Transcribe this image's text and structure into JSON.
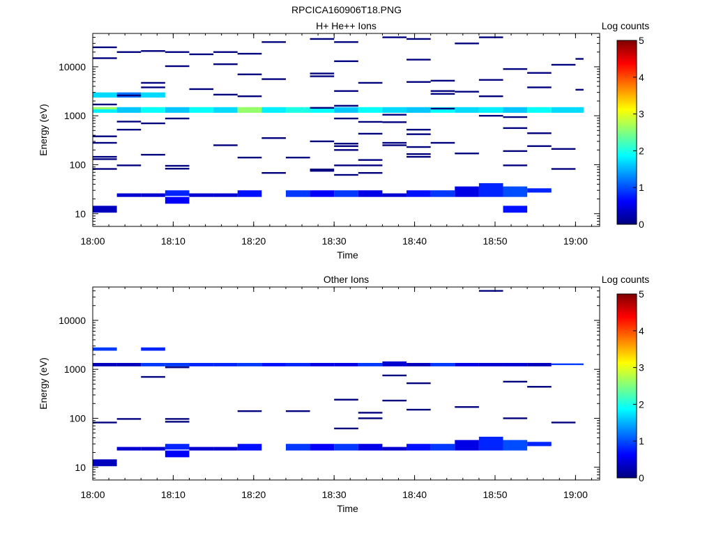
{
  "figure_title": "RPCICA160906T18.PNG",
  "chart_data": [
    {
      "type": "heatmap",
      "title": "H+ He++ Ions",
      "xlabel": "Time",
      "ylabel": "Energy (eV)",
      "y_scale": "log",
      "xlim": [
        "18:00",
        "19:03"
      ],
      "ylim": [
        5.5,
        48000
      ],
      "x_ticks": [
        "18:00",
        "18:10",
        "18:20",
        "18:30",
        "18:40",
        "18:50",
        "19:00"
      ],
      "y_ticks": [
        "10",
        "100",
        "1000",
        "10000"
      ],
      "colorbar": {
        "label": "Log counts",
        "range": [
          0,
          5
        ],
        "ticks": [
          "0",
          "1",
          "2",
          "3",
          "4",
          "5"
        ]
      },
      "bins": [
        [
          "18:00",
          "18:03",
          10.5,
          14.5,
          0.3
        ],
        [
          "18:03",
          "18:06",
          22,
          26,
          0.4
        ],
        [
          "18:06",
          "18:09",
          22,
          26,
          0.4
        ],
        [
          "18:09",
          "18:12",
          23,
          30,
          0.8
        ],
        [
          "18:12",
          "18:15",
          22,
          26,
          0.4
        ],
        [
          "18:15",
          "18:18",
          22,
          26,
          0.4
        ],
        [
          "18:18",
          "18:21",
          22,
          30,
          0.7
        ],
        [
          "18:24",
          "18:27",
          22,
          30,
          0.9
        ],
        [
          "18:27",
          "18:30",
          22,
          30,
          0.6
        ],
        [
          "18:30",
          "18:33",
          22,
          30,
          0.9
        ],
        [
          "18:33",
          "18:36",
          22,
          30,
          0.5
        ],
        [
          "18:36",
          "18:39",
          22,
          26,
          0.4
        ],
        [
          "18:39",
          "18:42",
          22,
          30,
          0.7
        ],
        [
          "18:42",
          "18:45",
          22,
          30,
          0.9
        ],
        [
          "18:45",
          "18:48",
          22,
          36,
          0.5
        ],
        [
          "18:48",
          "18:51",
          22,
          42,
          0.8
        ],
        [
          "18:51",
          "18:54",
          22,
          36,
          1.0
        ],
        [
          "18:54",
          "18:57",
          27,
          33,
          0.8
        ],
        [
          "18:51",
          "18:54",
          10.5,
          14.5,
          0.7
        ],
        [
          "18:09",
          "18:12",
          16,
          22,
          0.6
        ],
        [
          "18:00",
          "18:03",
          2350,
          3000,
          1.7
        ],
        [
          "18:00",
          "18:03",
          1350,
          1500,
          2.6
        ],
        [
          "18:00",
          "18:03",
          1150,
          1350,
          1.8
        ],
        [
          "18:03",
          "18:06",
          2350,
          3000,
          1.2
        ],
        [
          "18:03",
          "18:06",
          1150,
          1500,
          1.6
        ],
        [
          "18:06",
          "18:09",
          2350,
          3000,
          1.7
        ],
        [
          "18:06",
          "18:09",
          1150,
          1500,
          1.9
        ],
        [
          "18:09",
          "18:12",
          1150,
          1500,
          1.6
        ],
        [
          "18:12",
          "18:15",
          1150,
          1500,
          1.9
        ],
        [
          "18:15",
          "18:18",
          1150,
          1500,
          1.7
        ],
        [
          "18:18",
          "18:21",
          1150,
          1500,
          2.6
        ],
        [
          "18:21",
          "18:24",
          1150,
          1500,
          1.8
        ],
        [
          "18:24",
          "18:27",
          1150,
          1500,
          2.0
        ],
        [
          "18:27",
          "18:30",
          1150,
          1500,
          1.9
        ],
        [
          "18:30",
          "18:33",
          1150,
          1500,
          1.6
        ],
        [
          "18:33",
          "18:36",
          1150,
          1500,
          1.9
        ],
        [
          "18:36",
          "18:39",
          1150,
          1500,
          1.7
        ],
        [
          "18:39",
          "18:42",
          1150,
          1500,
          1.6
        ],
        [
          "18:42",
          "18:45",
          1150,
          1500,
          1.9
        ],
        [
          "18:45",
          "18:48",
          1150,
          1500,
          1.7
        ],
        [
          "18:48",
          "18:51",
          1150,
          1500,
          1.8
        ],
        [
          "18:51",
          "18:54",
          1150,
          1500,
          1.6
        ],
        [
          "18:54",
          "18:57",
          1150,
          1500,
          1.9
        ],
        [
          "18:57",
          "19:00",
          1150,
          1500,
          1.7
        ],
        [
          "19:00",
          "19:01",
          1150,
          1500,
          1.7
        ]
      ],
      "lines": [
        [
          "18:00",
          "18:03",
          25000
        ],
        [
          "18:03",
          "18:06",
          20000
        ],
        [
          "18:06",
          "18:09",
          21000
        ],
        [
          "18:09",
          "18:12",
          20000
        ],
        [
          "18:12",
          "18:15",
          18000
        ],
        [
          "18:15",
          "18:18",
          20000
        ],
        [
          "18:18",
          "18:21",
          18500
        ],
        [
          "18:21",
          "18:24",
          32000
        ],
        [
          "18:27",
          "18:30",
          37000
        ],
        [
          "18:30",
          "18:33",
          32000
        ],
        [
          "18:36",
          "18:39",
          40000
        ],
        [
          "18:39",
          "18:42",
          37000
        ],
        [
          "18:45",
          "18:48",
          30000
        ],
        [
          "18:48",
          "18:51",
          40000
        ],
        [
          "18:00",
          "18:03",
          15000
        ],
        [
          "18:09",
          "18:12",
          10300
        ],
        [
          "18:15",
          "18:18",
          11300
        ],
        [
          "18:18",
          "18:21",
          7000
        ],
        [
          "18:21",
          "18:24",
          5600
        ],
        [
          "18:27",
          "18:30",
          7300
        ],
        [
          "18:30",
          "18:33",
          13000
        ],
        [
          "18:33",
          "18:36",
          4700
        ],
        [
          "18:39",
          "18:42",
          14000
        ],
        [
          "18:42",
          "18:45",
          5200
        ],
        [
          "18:48",
          "18:51",
          5400
        ],
        [
          "18:51",
          "18:54",
          9000
        ],
        [
          "18:54",
          "18:57",
          7500
        ],
        [
          "18:57",
          "19:00",
          11000
        ],
        [
          "19:00",
          "19:01",
          14500
        ],
        [
          "18:06",
          "18:09",
          4700
        ],
        [
          "18:06",
          "18:09",
          3800
        ],
        [
          "18:12",
          "18:15",
          3500
        ],
        [
          "18:15",
          "18:18",
          2700
        ],
        [
          "18:18",
          "18:21",
          2500
        ],
        [
          "18:27",
          "18:30",
          6400
        ],
        [
          "18:30",
          "18:33",
          3200
        ],
        [
          "18:39",
          "18:42",
          4900
        ],
        [
          "18:42",
          "18:45",
          3200
        ],
        [
          "18:42",
          "18:45",
          2800
        ],
        [
          "18:45",
          "18:48",
          3100
        ],
        [
          "18:48",
          "18:51",
          2500
        ],
        [
          "18:54",
          "18:57",
          3800
        ],
        [
          "19:00",
          "19:01",
          3400
        ],
        [
          "18:03",
          "18:06",
          2600
        ],
        [
          "18:00",
          "18:03",
          1700
        ],
        [
          "18:30",
          "18:33",
          1600
        ],
        [
          "18:36",
          "18:39",
          1050
        ],
        [
          "18:48",
          "18:51",
          1000
        ],
        [
          "18:51",
          "18:54",
          940
        ],
        [
          "18:03",
          "18:06",
          760
        ],
        [
          "18:06",
          "18:09",
          700
        ],
        [
          "18:09",
          "18:12",
          880
        ],
        [
          "18:30",
          "18:33",
          880
        ],
        [
          "18:33",
          "18:36",
          750
        ],
        [
          "18:36",
          "18:39",
          740
        ],
        [
          "18:39",
          "18:42",
          520
        ],
        [
          "18:51",
          "18:54",
          560
        ],
        [
          "18:54",
          "18:57",
          440
        ],
        [
          "18:03",
          "18:06",
          520
        ],
        [
          "18:00",
          "18:03",
          380
        ],
        [
          "18:00",
          "18:03",
          280
        ],
        [
          "18:21",
          "18:24",
          350
        ],
        [
          "18:15",
          "18:18",
          250
        ],
        [
          "18:27",
          "18:30",
          300
        ],
        [
          "18:30",
          "18:33",
          270
        ],
        [
          "18:36",
          "18:39",
          280
        ],
        [
          "18:39",
          "18:42",
          420
        ],
        [
          "18:39",
          "18:42",
          230
        ],
        [
          "18:42",
          "18:45",
          280
        ],
        [
          "18:54",
          "18:57",
          240
        ],
        [
          "18:57",
          "19:00",
          210
        ],
        [
          "18:51",
          "18:54",
          190
        ],
        [
          "18:06",
          "18:09",
          160
        ],
        [
          "18:36",
          "18:39",
          250
        ],
        [
          "18:00",
          "18:03",
          145
        ],
        [
          "18:00",
          "18:03",
          130
        ],
        [
          "18:03",
          "18:06",
          97
        ],
        [
          "18:09",
          "18:12",
          95
        ],
        [
          "18:09",
          "18:12",
          83
        ],
        [
          "18:00",
          "18:03",
          82
        ],
        [
          "18:18",
          "18:21",
          140
        ],
        [
          "18:24",
          "18:27",
          140
        ],
        [
          "18:30",
          "18:33",
          97
        ],
        [
          "18:33",
          "18:36",
          125
        ],
        [
          "18:33",
          "18:36",
          97
        ],
        [
          "18:39",
          "18:42",
          165
        ],
        [
          "18:39",
          "18:42",
          145
        ],
        [
          "18:45",
          "18:48",
          170
        ],
        [
          "18:51",
          "18:54",
          97
        ],
        [
          "18:57",
          "19:00",
          82
        ],
        [
          "18:21",
          "18:24",
          68
        ],
        [
          "18:27",
          "18:30",
          75
        ],
        [
          "18:30",
          "18:33",
          62
        ],
        [
          "18:33",
          "18:36",
          68
        ],
        [
          "18:27",
          "18:30",
          80
        ],
        [
          "18:30",
          "18:33",
          240
        ],
        [
          "18:30",
          "18:33",
          200
        ],
        [
          "18:33",
          "18:36",
          430
        ],
        [
          "18:42",
          "18:45",
          1400
        ],
        [
          "18:27",
          "18:30",
          1450
        ]
      ]
    },
    {
      "type": "heatmap",
      "title": "Other Ions",
      "xlabel": "Time",
      "ylabel": "Energy (eV)",
      "y_scale": "log",
      "xlim": [
        "18:00",
        "19:03"
      ],
      "ylim": [
        5.5,
        48000
      ],
      "x_ticks": [
        "18:00",
        "18:10",
        "18:20",
        "18:30",
        "18:40",
        "18:50",
        "19:00"
      ],
      "y_ticks": [
        "10",
        "100",
        "1000",
        "10000"
      ],
      "colorbar": {
        "label": "Log counts",
        "range": [
          0,
          5
        ],
        "ticks": [
          "0",
          "1",
          "2",
          "3",
          "4",
          "5"
        ]
      },
      "bins": [
        [
          "18:00",
          "18:03",
          10.5,
          14.5,
          0.3
        ],
        [
          "18:03",
          "18:06",
          22,
          26,
          0.4
        ],
        [
          "18:06",
          "18:09",
          22,
          26,
          0.4
        ],
        [
          "18:09",
          "18:12",
          23,
          30,
          0.8
        ],
        [
          "18:12",
          "18:15",
          22,
          26,
          0.4
        ],
        [
          "18:15",
          "18:18",
          22,
          26,
          0.4
        ],
        [
          "18:18",
          "18:21",
          22,
          30,
          0.7
        ],
        [
          "18:24",
          "18:27",
          22,
          30,
          0.9
        ],
        [
          "18:27",
          "18:30",
          22,
          30,
          0.6
        ],
        [
          "18:30",
          "18:33",
          22,
          30,
          0.9
        ],
        [
          "18:33",
          "18:36",
          22,
          30,
          0.5
        ],
        [
          "18:36",
          "18:39",
          22,
          26,
          0.4
        ],
        [
          "18:39",
          "18:42",
          22,
          30,
          0.7
        ],
        [
          "18:42",
          "18:45",
          22,
          30,
          0.9
        ],
        [
          "18:45",
          "18:48",
          22,
          36,
          0.5
        ],
        [
          "18:48",
          "18:51",
          22,
          42,
          0.8
        ],
        [
          "18:51",
          "18:54",
          22,
          36,
          1.0
        ],
        [
          "18:54",
          "18:57",
          27,
          33,
          0.8
        ],
        [
          "18:09",
          "18:12",
          16,
          22,
          0.6
        ],
        [
          "18:00",
          "18:03",
          1150,
          1350,
          0.3
        ],
        [
          "18:03",
          "18:06",
          1150,
          1350,
          0.3
        ],
        [
          "18:06",
          "18:09",
          1150,
          1350,
          0.9
        ],
        [
          "18:09",
          "18:12",
          1150,
          1350,
          0.9
        ],
        [
          "18:12",
          "18:15",
          1150,
          1350,
          0.8
        ],
        [
          "18:15",
          "18:18",
          1150,
          1350,
          0.8
        ],
        [
          "18:18",
          "18:21",
          1150,
          1350,
          0.9
        ],
        [
          "18:21",
          "18:24",
          1150,
          1350,
          0.7
        ],
        [
          "18:24",
          "18:27",
          1150,
          1350,
          0.8
        ],
        [
          "18:27",
          "18:30",
          1150,
          1350,
          0.5
        ],
        [
          "18:30",
          "18:33",
          1150,
          1350,
          0.5
        ],
        [
          "18:33",
          "18:36",
          1150,
          1350,
          0.9
        ],
        [
          "18:36",
          "18:39",
          1150,
          1450,
          0.4
        ],
        [
          "18:39",
          "18:42",
          1150,
          1350,
          0.3
        ],
        [
          "18:42",
          "18:45",
          1150,
          1350,
          0.9
        ],
        [
          "18:45",
          "18:48",
          1150,
          1350,
          0.5
        ],
        [
          "18:48",
          "18:51",
          1150,
          1350,
          0.4
        ],
        [
          "18:51",
          "18:54",
          1150,
          1350,
          0.4
        ],
        [
          "18:54",
          "18:57",
          1150,
          1350,
          0.3
        ],
        [
          "18:57",
          "19:00",
          1220,
          1320,
          0.9
        ],
        [
          "19:00",
          "19:01",
          1220,
          1320,
          0.9
        ],
        [
          "18:00",
          "18:03",
          2400,
          2800,
          0.9
        ],
        [
          "18:06",
          "18:09",
          2400,
          2800,
          0.8
        ]
      ],
      "lines": [
        [
          "18:00",
          "18:03",
          82
        ],
        [
          "18:03",
          "18:06",
          97
        ],
        [
          "18:09",
          "18:12",
          97
        ],
        [
          "18:09",
          "18:12",
          85
        ],
        [
          "18:18",
          "18:21",
          140
        ],
        [
          "18:24",
          "18:27",
          140
        ],
        [
          "18:30",
          "18:33",
          240
        ],
        [
          "18:30",
          "18:33",
          62
        ],
        [
          "18:33",
          "18:36",
          130
        ],
        [
          "18:33",
          "18:36",
          100
        ],
        [
          "18:36",
          "18:39",
          230
        ],
        [
          "18:39",
          "18:42",
          150
        ],
        [
          "18:45",
          "18:48",
          170
        ],
        [
          "18:51",
          "18:54",
          100
        ],
        [
          "18:57",
          "19:00",
          82
        ],
        [
          "18:06",
          "18:09",
          700
        ],
        [
          "18:09",
          "18:12",
          1100
        ],
        [
          "18:36",
          "18:39",
          750
        ],
        [
          "18:39",
          "18:42",
          520
        ],
        [
          "18:51",
          "18:54",
          560
        ],
        [
          "18:54",
          "18:57",
          440
        ],
        [
          "18:48",
          "18:51",
          40000
        ]
      ]
    }
  ]
}
